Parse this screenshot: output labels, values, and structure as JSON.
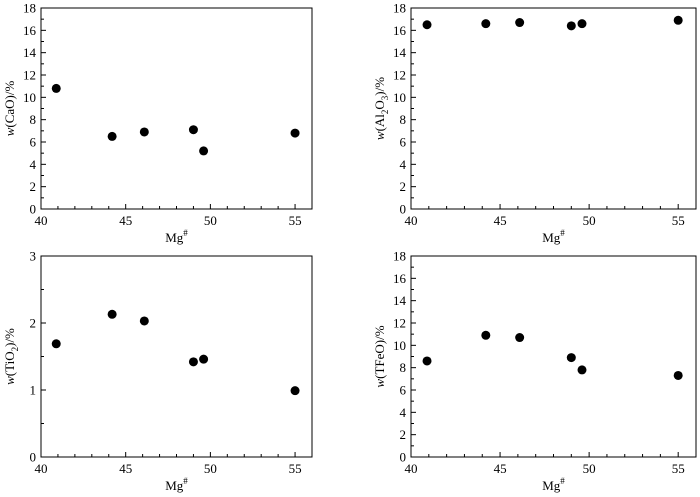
{
  "chart_data": [
    {
      "type": "scatter",
      "xlabel": {
        "base": "Mg",
        "sup": "#"
      },
      "ylabel": {
        "parts": [
          {
            "t": "w",
            "i": true
          },
          {
            "t": "(CaO)/%"
          }
        ]
      },
      "xlim": [
        40,
        56
      ],
      "ylim": [
        0,
        18
      ],
      "xticks": [
        40,
        45,
        50,
        55
      ],
      "yticks": [
        0,
        2,
        4,
        6,
        8,
        10,
        12,
        14,
        16,
        18
      ],
      "x": [
        40.9,
        44.2,
        46.1,
        49.0,
        49.6,
        55.0
      ],
      "y": [
        10.8,
        6.5,
        6.9,
        7.1,
        5.2,
        6.8
      ]
    },
    {
      "type": "scatter",
      "xlabel": {
        "base": "Mg",
        "sup": "#"
      },
      "ylabel": {
        "parts": [
          {
            "t": "w",
            "i": true
          },
          {
            "t": "(Al"
          },
          {
            "t": "2",
            "sub": true
          },
          {
            "t": "O"
          },
          {
            "t": "3",
            "sub": true
          },
          {
            "t": ")/%"
          }
        ]
      },
      "xlim": [
        40,
        56
      ],
      "ylim": [
        0,
        18
      ],
      "xticks": [
        40,
        45,
        50,
        55
      ],
      "yticks": [
        0,
        2,
        4,
        6,
        8,
        10,
        12,
        14,
        16,
        18
      ],
      "x": [
        40.9,
        44.2,
        46.1,
        49.0,
        49.6,
        55.0
      ],
      "y": [
        16.5,
        16.6,
        16.7,
        16.4,
        16.6,
        16.9
      ]
    },
    {
      "type": "scatter",
      "xlabel": {
        "base": "Mg",
        "sup": "#"
      },
      "ylabel": {
        "parts": [
          {
            "t": "w",
            "i": true
          },
          {
            "t": "(TiO"
          },
          {
            "t": "2",
            "sub": true
          },
          {
            "t": ")/%"
          }
        ]
      },
      "xlim": [
        40,
        56
      ],
      "ylim": [
        0,
        3
      ],
      "xticks": [
        40,
        45,
        50,
        55
      ],
      "yticks": [
        0,
        1,
        2,
        3
      ],
      "x": [
        40.9,
        44.2,
        46.1,
        49.0,
        49.6,
        55.0
      ],
      "y": [
        1.69,
        2.13,
        2.03,
        1.42,
        1.46,
        0.99
      ]
    },
    {
      "type": "scatter",
      "xlabel": {
        "base": "Mg",
        "sup": "#"
      },
      "ylabel": {
        "parts": [
          {
            "t": "w",
            "i": true
          },
          {
            "t": "(TFeO)/%"
          }
        ]
      },
      "xlim": [
        40,
        56
      ],
      "ylim": [
        0,
        18
      ],
      "xticks": [
        40,
        45,
        50,
        55
      ],
      "yticks": [
        0,
        2,
        4,
        6,
        8,
        10,
        12,
        14,
        16,
        18
      ],
      "x": [
        40.9,
        44.2,
        46.1,
        49.0,
        49.6,
        55.0
      ],
      "y": [
        8.6,
        10.9,
        10.7,
        8.9,
        7.8,
        7.3
      ]
    }
  ]
}
